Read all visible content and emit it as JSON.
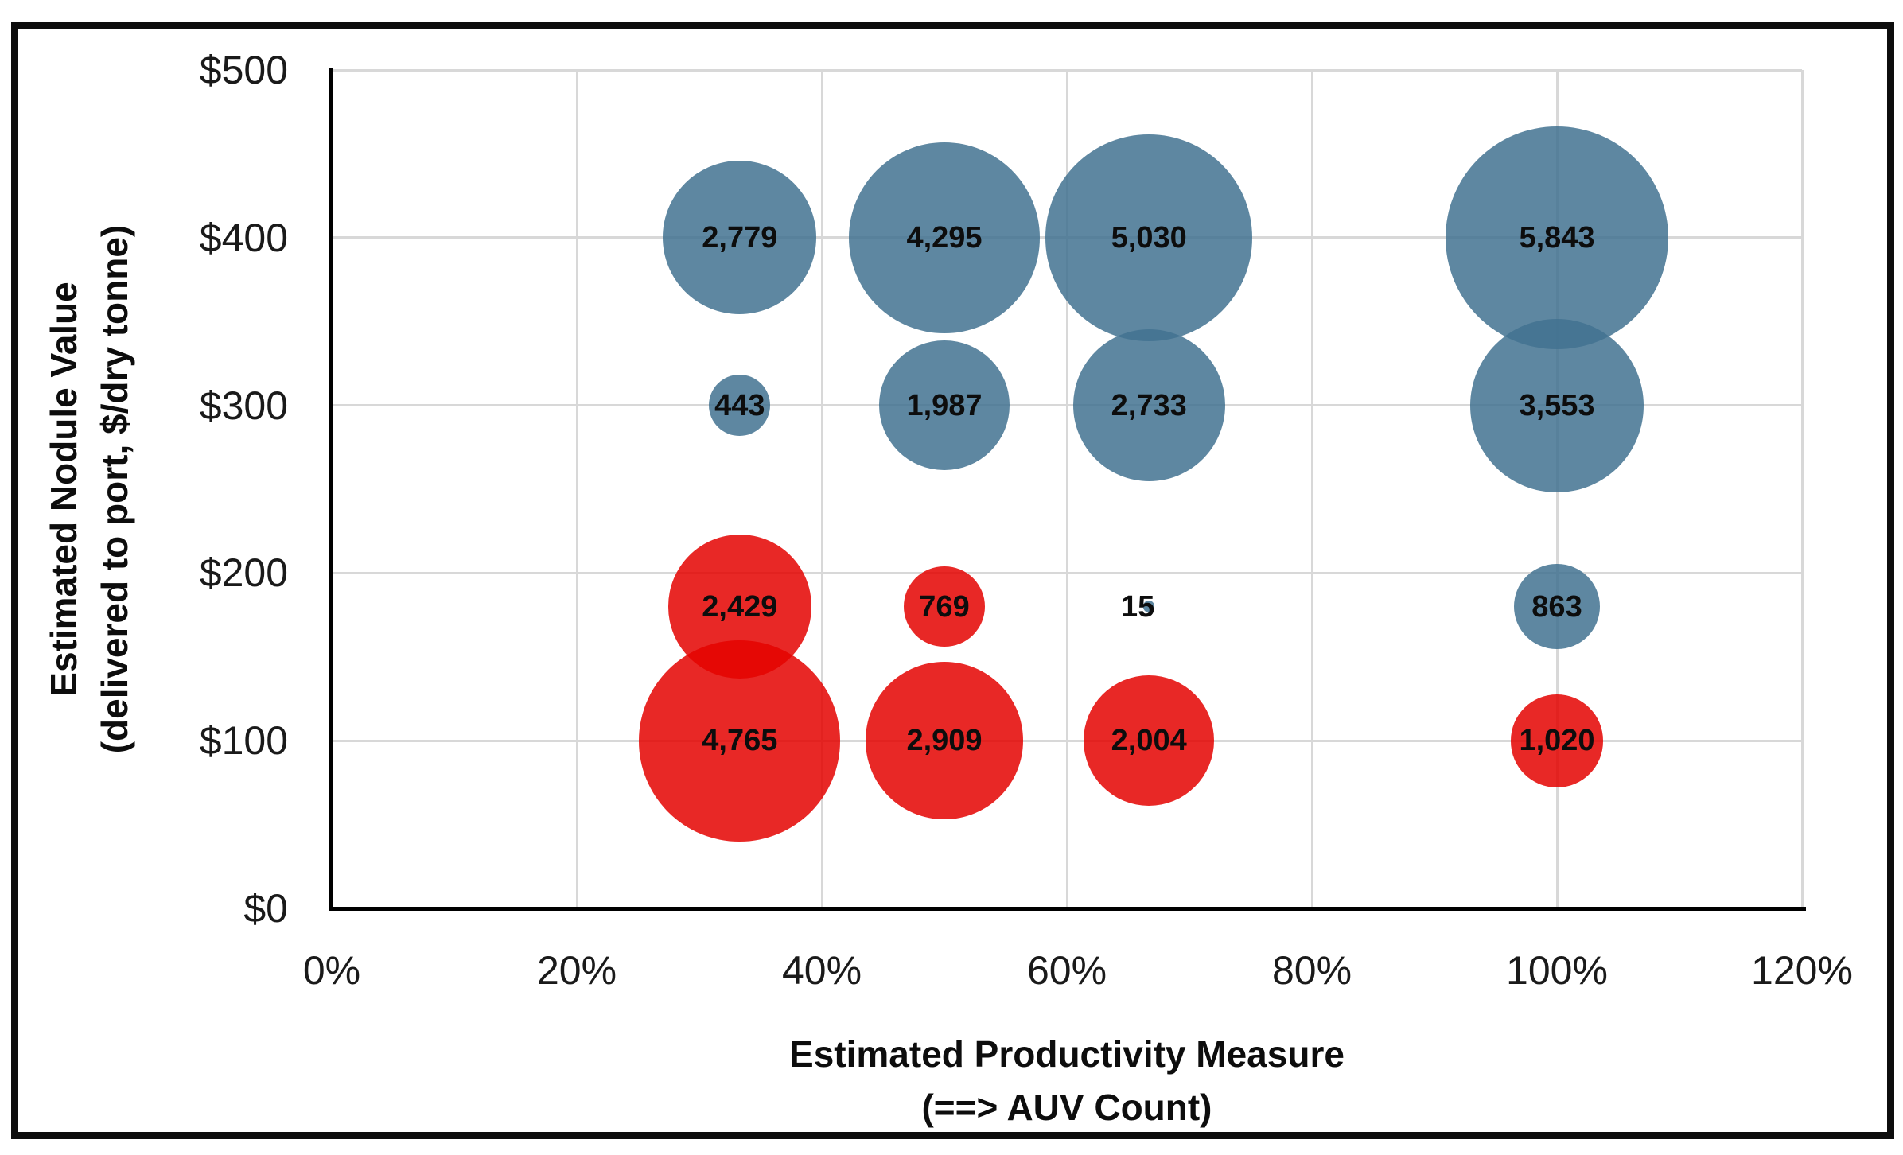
{
  "chart_data": {
    "type": "scatter",
    "subtype": "bubble",
    "title": "",
    "xlabel": "Estimated Productivity Measure",
    "xlabel_line2": "(==> AUV Count)",
    "ylabel": "Estimated Nodule Value",
    "ylabel_line2": "(delivered to port, $/dry tonne)",
    "xlim": [
      0,
      120
    ],
    "ylim": [
      0,
      500
    ],
    "grid": true,
    "legend": "none",
    "colors": {
      "grid": "#d8d8d8",
      "axis": "#000000",
      "label": "#0d0d0d",
      "blue_series": "#5e87a1",
      "red_series": "#e8281c"
    },
    "x_ticks": [
      {
        "value": 0,
        "label": "0%"
      },
      {
        "value": 20,
        "label": "20%"
      },
      {
        "value": 40,
        "label": "40%"
      },
      {
        "value": 60,
        "label": "60%"
      },
      {
        "value": 80,
        "label": "80%"
      },
      {
        "value": 100,
        "label": "100%"
      },
      {
        "value": 120,
        "label": "120%"
      }
    ],
    "y_ticks": [
      {
        "value": 0,
        "label": "$0"
      },
      {
        "value": 100,
        "label": "$100"
      },
      {
        "value": 200,
        "label": "$200"
      },
      {
        "value": 300,
        "label": "$300"
      },
      {
        "value": 400,
        "label": "$400"
      },
      {
        "value": 500,
        "label": "$500"
      }
    ],
    "series": [
      {
        "name": "blue-bubbles",
        "fill": "rgba(66,114,145,0.85)",
        "points": [
          {
            "x": 33.3,
            "y": 400,
            "value": 2779,
            "label": "2,779"
          },
          {
            "x": 50,
            "y": 400,
            "value": 4295,
            "label": "4,295"
          },
          {
            "x": 66.7,
            "y": 400,
            "value": 5030,
            "label": "5,030"
          },
          {
            "x": 100,
            "y": 400,
            "value": 5843,
            "label": "5,843"
          },
          {
            "x": 33.3,
            "y": 300,
            "value": 443,
            "label": "443"
          },
          {
            "x": 50,
            "y": 300,
            "value": 1987,
            "label": "1,987"
          },
          {
            "x": 66.7,
            "y": 300,
            "value": 2733,
            "label": "2,733"
          },
          {
            "x": 100,
            "y": 300,
            "value": 3553,
            "label": "3,553"
          },
          {
            "x": 66.7,
            "y": 180,
            "value": 15,
            "label": "15",
            "label_dx": -14
          },
          {
            "x": 100,
            "y": 180,
            "value": 863,
            "label": "863"
          }
        ]
      },
      {
        "name": "red-bubbles",
        "fill": "rgba(228,2,0,0.85)",
        "points": [
          {
            "x": 33.3,
            "y": 180,
            "value": 2429,
            "label": "2,429"
          },
          {
            "x": 50,
            "y": 180,
            "value": 769,
            "label": "769"
          },
          {
            "x": 33.3,
            "y": 100,
            "value": 4765,
            "label": "4,765"
          },
          {
            "x": 50,
            "y": 100,
            "value": 2909,
            "label": "2,909"
          },
          {
            "x": 66.7,
            "y": 100,
            "value": 2004,
            "label": "2,004"
          },
          {
            "x": 100,
            "y": 100,
            "value": 1020,
            "label": "1,020"
          }
        ]
      }
    ]
  }
}
